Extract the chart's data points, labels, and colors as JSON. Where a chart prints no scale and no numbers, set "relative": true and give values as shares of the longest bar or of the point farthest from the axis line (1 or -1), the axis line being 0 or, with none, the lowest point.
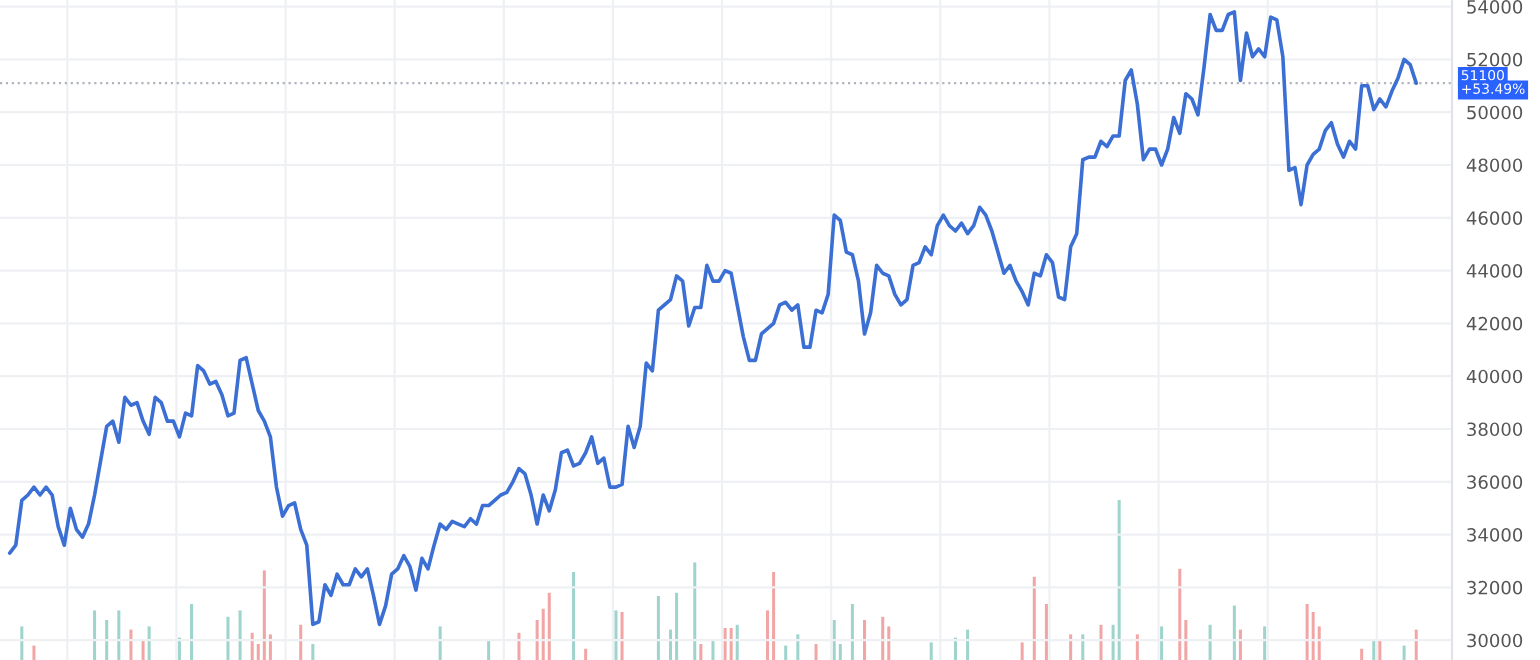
{
  "chart_data": [
    {
      "type": "line",
      "categories": [
        null,
        null,
        null,
        null,
        null,
        null,
        null,
        null,
        null,
        null,
        null,
        null,
        null,
        null,
        null,
        null,
        null,
        null,
        null,
        null,
        null,
        null,
        null,
        null,
        null,
        null,
        null,
        null,
        null,
        null,
        null,
        null,
        null,
        null,
        null,
        null,
        null,
        null,
        null,
        null,
        null,
        null,
        null,
        null,
        null,
        null,
        null,
        null,
        null,
        null,
        null,
        null,
        null,
        null,
        null,
        null,
        null,
        null,
        null,
        null,
        null,
        null,
        null,
        null,
        null,
        null,
        null,
        null,
        null,
        null,
        null,
        null,
        null,
        null,
        null,
        null,
        null,
        null,
        null,
        null,
        null,
        null,
        null,
        null,
        null,
        null,
        null,
        null,
        null,
        null,
        null,
        null,
        null,
        null,
        null,
        null,
        null,
        null,
        null,
        null,
        null,
        null,
        null,
        null,
        null,
        null,
        null,
        null,
        null,
        null,
        null,
        null,
        null,
        null,
        null,
        null,
        null,
        null,
        null,
        null,
        null,
        null,
        null,
        null,
        null,
        null,
        null,
        null,
        null,
        null,
        null,
        null,
        null,
        null,
        null,
        null,
        null,
        null,
        null,
        null,
        null,
        null,
        null,
        null,
        null,
        null,
        null,
        null,
        null,
        null,
        null,
        null,
        null,
        null,
        null,
        null,
        null,
        null,
        null,
        null,
        null,
        null,
        null,
        null,
        null,
        null,
        null,
        null,
        null,
        null,
        null,
        null,
        null,
        null,
        null,
        null,
        null,
        null,
        null,
        null,
        null,
        null,
        null,
        null,
        null,
        null,
        null,
        null,
        null,
        null,
        null,
        null,
        null,
        null,
        null,
        null,
        null,
        null,
        null,
        null,
        null,
        null,
        null,
        null,
        null,
        null,
        null,
        null,
        null,
        null,
        null,
        null,
        null,
        null,
        null,
        null,
        null,
        null,
        null,
        null,
        null,
        null,
        null,
        null,
        null,
        null,
        null,
        null,
        null,
        null,
        null,
        null,
        null
      ],
      "series": [
        {
          "color": "#3b6fd4",
          "values": [
            33300,
            33600,
            35300,
            35500,
            35800,
            35500,
            35800,
            35500,
            34300,
            33600,
            35000,
            34200,
            33900,
            34400,
            35500,
            36800,
            38100,
            38300,
            37500,
            39200,
            38900,
            39000,
            38300,
            37800,
            39200,
            39000,
            38300,
            38300,
            37700,
            38600,
            38500,
            40400,
            40200,
            39700,
            39800,
            39300,
            38500,
            38600,
            40600,
            40700,
            39700,
            38700,
            38300,
            37700,
            35800,
            34700,
            35100,
            35200,
            34200,
            33600,
            30600,
            30700,
            32100,
            31700,
            32500,
            32100,
            32100,
            32700,
            32400,
            32700,
            31700,
            30600,
            31300,
            32500,
            32700,
            33200,
            32800,
            31900,
            33100,
            32700,
            33600,
            34400,
            34200,
            34500,
            34400,
            34300,
            34600,
            34400,
            35100,
            35100,
            35300,
            35500,
            35600,
            36000,
            36500,
            36300,
            35500,
            34400,
            35500,
            34900,
            35700,
            37100,
            37200,
            36600,
            36700,
            37100,
            37700,
            36700,
            36900,
            35800,
            35800,
            35900,
            38100,
            37300,
            38100,
            40500,
            40200,
            42500,
            42700,
            42900,
            43800,
            43600,
            41900,
            42600,
            42600,
            44200,
            43600,
            43600,
            44000,
            43900,
            42700,
            41500,
            40600,
            40600,
            41600,
            41800,
            42000,
            42700,
            42800,
            42500,
            42700,
            41100,
            41100,
            42500,
            42400,
            43100,
            46100,
            45900,
            44700,
            44600,
            43600,
            41600,
            42400,
            44200,
            43900,
            43800,
            43100,
            42700,
            42900,
            44200,
            44300,
            44900,
            44600,
            45700,
            46100,
            45700,
            45500,
            45800,
            45400,
            45700,
            46400,
            46100,
            45500,
            44700,
            43900,
            44200,
            43600,
            43200,
            42700,
            43900,
            43800,
            44600,
            44300,
            43000,
            42900,
            44900,
            45400,
            48200,
            48300,
            48300,
            48900,
            48700,
            49100,
            49100,
            51200,
            51600,
            50300,
            48200,
            48600,
            48600,
            48000,
            48600,
            49800,
            49200,
            50700,
            50500,
            49900,
            51700,
            53700,
            53100,
            53100,
            53700,
            53800,
            51200,
            53000,
            52100,
            52400,
            52100,
            53600,
            53500,
            52100,
            47800,
            47900,
            46500,
            48000,
            48400,
            48600,
            49300,
            49600,
            48800,
            48300,
            48900,
            48600,
            51000,
            51000,
            50100,
            50500,
            50200,
            50800,
            51300,
            52000,
            51800,
            51100
          ]
        }
      ],
      "ylim": [
        29250,
        54250
      ],
      "yticks": [
        30000,
        32000,
        34000,
        36000,
        38000,
        40000,
        42000,
        44000,
        46000,
        48000,
        50000,
        52000,
        54000
      ],
      "grid": true,
      "tick_labels": "y",
      "ref_lines": [
        {
          "axis": "y",
          "value": 51100,
          "label": "51100",
          "color": "#b0b4bd",
          "line_style": "dotted"
        }
      ],
      "annotations": [
        "+53.49%"
      ]
    },
    {
      "type": "bar",
      "relative": true,
      "tick_labels": false,
      "categories": [
        null,
        null,
        null,
        null,
        null,
        null,
        null,
        null,
        null,
        null,
        null,
        null,
        null,
        null,
        null,
        null,
        null,
        null,
        null,
        null,
        null,
        null,
        null,
        null,
        null,
        null,
        null,
        null,
        null,
        null,
        null,
        null,
        null,
        null,
        null,
        null,
        null,
        null,
        null,
        null,
        null,
        null,
        null,
        null,
        null,
        null,
        null,
        null,
        null,
        null,
        null,
        null,
        null,
        null,
        null,
        null,
        null,
        null,
        null,
        null,
        null,
        null,
        null,
        null,
        null,
        null,
        null,
        null,
        null,
        null,
        null,
        null,
        null,
        null,
        null,
        null,
        null,
        null,
        null,
        null,
        null,
        null,
        null,
        null,
        null,
        null,
        null,
        null,
        null,
        null,
        null,
        null,
        null,
        null,
        null,
        null,
        null,
        null,
        null,
        null,
        null,
        null,
        null,
        null,
        null,
        null,
        null,
        null,
        null,
        null,
        null,
        null,
        null,
        null,
        null,
        null,
        null,
        null,
        null,
        null,
        null,
        null,
        null,
        null,
        null,
        null,
        null,
        null,
        null,
        null,
        null,
        null,
        null,
        null,
        null,
        null,
        null,
        null,
        null,
        null,
        null,
        null,
        null,
        null,
        null,
        null,
        null,
        null,
        null,
        null,
        null,
        null,
        null,
        null,
        null,
        null,
        null,
        null,
        null,
        null,
        null,
        null,
        null,
        null,
        null,
        null,
        null,
        null,
        null,
        null,
        null,
        null,
        null,
        null,
        null,
        null,
        null,
        null,
        null,
        null,
        null,
        null,
        null,
        null,
        null,
        null,
        null,
        null,
        null,
        null,
        null,
        null,
        null,
        null,
        null,
        null,
        null,
        null,
        null,
        null,
        null,
        null,
        null,
        null,
        null,
        null,
        null,
        null,
        null,
        null,
        null,
        null,
        null,
        null,
        null,
        null,
        null,
        null,
        null,
        null,
        null,
        null,
        null,
        null,
        null,
        null,
        null,
        null,
        null,
        null,
        null,
        null,
        null
      ],
      "series": [
        {
          "values": [
            null,
            null,
            0.21,
            null,
            0.09,
            null,
            null,
            null,
            null,
            null,
            null,
            null,
            null,
            null,
            0.31,
            null,
            0.25,
            null,
            0.31,
            null,
            0.19,
            null,
            0.12,
            0.21,
            null,
            null,
            null,
            null,
            0.14,
            null,
            0.35,
            null,
            null,
            null,
            null,
            null,
            0.27,
            null,
            0.31,
            null,
            0.17,
            0.1,
            0.56,
            0.16,
            null,
            null,
            null,
            null,
            0.22,
            null,
            0.1,
            null,
            null,
            null,
            null,
            null,
            null,
            null,
            null,
            null,
            null,
            null,
            null,
            null,
            null,
            null,
            null,
            null,
            null,
            null,
            null,
            0.21,
            null,
            null,
            null,
            null,
            null,
            null,
            null,
            0.12,
            null,
            null,
            null,
            null,
            0.17,
            null,
            null,
            0.25,
            0.32,
            0.42,
            null,
            null,
            null,
            0.55,
            null,
            0.07,
            null,
            null,
            null,
            null,
            0.31,
            0.3,
            null,
            null,
            null,
            null,
            null,
            0.4,
            null,
            0.19,
            0.42,
            null,
            null,
            0.61,
            0.1,
            null,
            0.12,
            null,
            0.2,
            0.2,
            0.22,
            null,
            null,
            null,
            null,
            0.31,
            0.55,
            null,
            0.09,
            null,
            0.16,
            null,
            null,
            0.1,
            null,
            null,
            0.25,
            0.1,
            null,
            0.35,
            null,
            0.25,
            null,
            null,
            0.27,
            0.21,
            null,
            null,
            null,
            null,
            null,
            null,
            0.11,
            null,
            null,
            null,
            0.14,
            null,
            0.19,
            null,
            null,
            null,
            null,
            null,
            null,
            null,
            null,
            0.11,
            null,
            0.52,
            null,
            0.35,
            null,
            null,
            null,
            0.16,
            null,
            0.16,
            null,
            null,
            0.22,
            null,
            0.22,
            1,
            null,
            null,
            0.16,
            null,
            null,
            null,
            0.21,
            null,
            null,
            0.57,
            0.25,
            null,
            null,
            null,
            0.22,
            null,
            null,
            null,
            0.34,
            0.19,
            null,
            null,
            null,
            0.21,
            null,
            null,
            null,
            null,
            null,
            null,
            0.35,
            0.3,
            0.21,
            null,
            null,
            null,
            null,
            null,
            null,
            0.07,
            null,
            0.12,
            0.12,
            null,
            null,
            null,
            0.09,
            null,
            0.19
          ],
          "colors": [
            null,
            null,
            "#9ed4cc",
            null,
            "#f2a5a5",
            null,
            null,
            null,
            null,
            null,
            null,
            null,
            null,
            null,
            "#9ed4cc",
            null,
            "#9ed4cc",
            null,
            "#9ed4cc",
            null,
            "#f2a5a5",
            null,
            "#f2a5a5",
            "#9ed4cc",
            null,
            null,
            null,
            null,
            "#9ed4cc",
            null,
            "#9ed4cc",
            null,
            null,
            null,
            null,
            null,
            "#9ed4cc",
            null,
            "#9ed4cc",
            null,
            "#f2a5a5",
            "#f2a5a5",
            "#f2a5a5",
            "#f2a5a5",
            null,
            null,
            null,
            null,
            "#f2a5a5",
            null,
            "#9ed4cc",
            null,
            null,
            null,
            null,
            null,
            null,
            null,
            null,
            null,
            null,
            null,
            null,
            null,
            null,
            null,
            null,
            null,
            null,
            null,
            null,
            "#9ed4cc",
            null,
            null,
            null,
            null,
            null,
            null,
            null,
            "#9ed4cc",
            null,
            null,
            null,
            null,
            "#f2a5a5",
            null,
            null,
            "#f2a5a5",
            "#f2a5a5",
            "#f2a5a5",
            null,
            null,
            null,
            "#9ed4cc",
            null,
            "#f2a5a5",
            null,
            null,
            null,
            null,
            "#9ed4cc",
            "#f2a5a5",
            null,
            null,
            null,
            null,
            null,
            "#9ed4cc",
            null,
            "#9ed4cc",
            "#9ed4cc",
            null,
            null,
            "#9ed4cc",
            "#f2a5a5",
            null,
            "#9ed4cc",
            null,
            "#f2a5a5",
            "#f2a5a5",
            "#9ed4cc",
            null,
            null,
            null,
            null,
            "#f2a5a5",
            "#f2a5a5",
            null,
            "#9ed4cc",
            null,
            "#9ed4cc",
            null,
            null,
            "#f2a5a5",
            null,
            null,
            "#9ed4cc",
            "#9ed4cc",
            null,
            "#9ed4cc",
            null,
            "#f2a5a5",
            null,
            null,
            "#f2a5a5",
            "#f2a5a5",
            null,
            null,
            null,
            null,
            null,
            null,
            "#9ed4cc",
            null,
            null,
            null,
            "#9ed4cc",
            null,
            "#9ed4cc",
            null,
            null,
            null,
            null,
            null,
            null,
            null,
            null,
            "#f2a5a5",
            null,
            "#f2a5a5",
            null,
            "#f2a5a5",
            null,
            null,
            null,
            "#f2a5a5",
            null,
            "#9ed4cc",
            null,
            null,
            "#f2a5a5",
            null,
            "#9ed4cc",
            "#9ed4cc",
            null,
            null,
            "#f2a5a5",
            null,
            null,
            null,
            "#9ed4cc",
            null,
            null,
            "#f2a5a5",
            "#f2a5a5",
            null,
            null,
            null,
            "#9ed4cc",
            null,
            null,
            null,
            "#9ed4cc",
            "#f2a5a5",
            null,
            null,
            null,
            "#9ed4cc",
            null,
            null,
            null,
            null,
            null,
            null,
            "#f2a5a5",
            "#f2a5a5",
            "#f2a5a5",
            null,
            null,
            null,
            null,
            null,
            null,
            "#f2a5a5",
            null,
            "#9ed4cc",
            "#f2a5a5",
            null,
            null,
            null,
            "#9ed4cc",
            null,
            "#f2a5a5"
          ]
        }
      ]
    }
  ]
}
